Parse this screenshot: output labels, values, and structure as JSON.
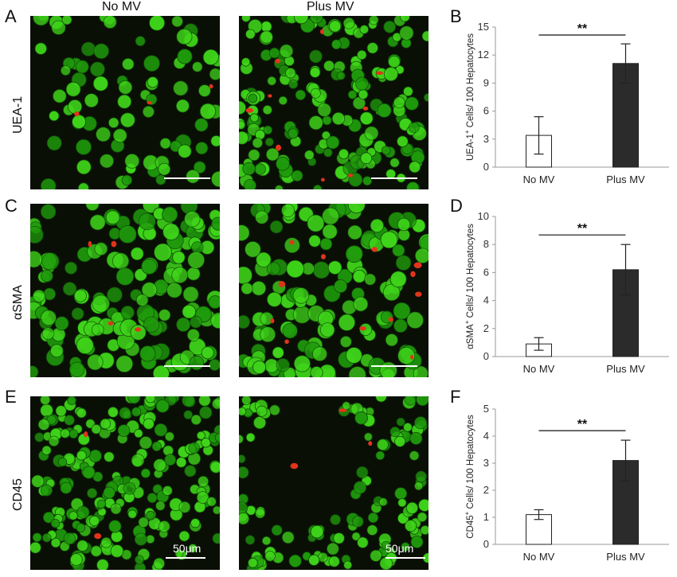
{
  "columns": [
    "No MV",
    "Plus MV"
  ],
  "rows": [
    {
      "letter": "A",
      "label": "UEA-1",
      "scale_text": ""
    },
    {
      "letter": "C",
      "label": "αSMA",
      "scale_text": ""
    },
    {
      "letter": "E",
      "label": "CD45",
      "scale_text": "50μm"
    }
  ],
  "colors": {
    "cell_green": "#3fd41a",
    "cell_green_dark": "#1f9a0c",
    "cell_red": "#e2341c",
    "bar_control": "#ffffff",
    "bar_treated": "#2b2b2b",
    "axis": "#999999"
  },
  "chart_data": [
    {
      "panel": "B",
      "type": "bar",
      "categories": [
        "No MV",
        "Plus MV"
      ],
      "values": [
        3.4,
        11.1
      ],
      "errors": [
        2.0,
        2.1
      ],
      "ylabel": "UEA-1+ Cells/ 100 Hepatocytes",
      "ylabel_main": "UEA-1",
      "ylabel_sup": "+",
      "ylabel_rest": " Cells/ 100 Hepatocytes",
      "ylim": [
        0,
        15
      ],
      "yticks": [
        0,
        3,
        6,
        9,
        12,
        15
      ],
      "significance": "**",
      "grid": false
    },
    {
      "panel": "D",
      "type": "bar",
      "categories": [
        "No MV",
        "Plus MV"
      ],
      "values": [
        0.9,
        6.2
      ],
      "errors": [
        0.45,
        1.8
      ],
      "ylabel": "αSMA+ Cells/ 100 Hepatocytes",
      "ylabel_main": "αSMA",
      "ylabel_sup": "+",
      "ylabel_rest": " Cells/ 100 Hepatocytes",
      "ylim": [
        0,
        10
      ],
      "yticks": [
        0,
        2,
        4,
        6,
        8,
        10
      ],
      "significance": "**",
      "grid": false
    },
    {
      "panel": "F",
      "type": "bar",
      "categories": [
        "No MV",
        "Plus MV"
      ],
      "values": [
        1.1,
        3.1
      ],
      "errors": [
        0.18,
        0.75
      ],
      "ylabel": "CD45+ Cells/ 100 Hepatocytes",
      "ylabel_main": "CD45",
      "ylabel_sup": "+",
      "ylabel_rest": " Cells/ 100 Hepatocytes",
      "ylim": [
        0,
        5
      ],
      "yticks": [
        0,
        1,
        2,
        3,
        4,
        5
      ],
      "significance": "**",
      "grid": false
    }
  ]
}
